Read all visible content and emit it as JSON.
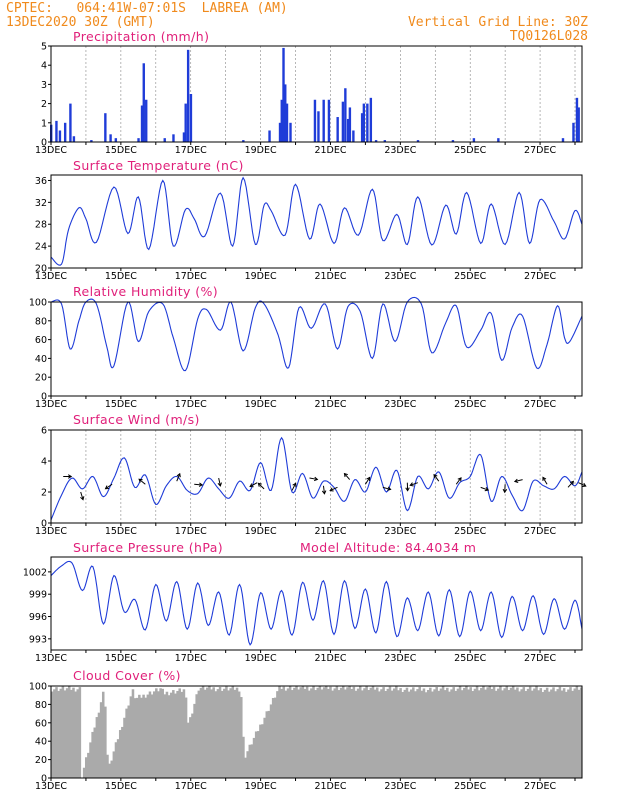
{
  "header": {
    "line1_left": "CPTEC:   064:41W-07:01S  LABREA (AM)",
    "line2_left": "13DEC2020 30Z (GMT)",
    "line1_right": "Vertical Grid Line: 30Z",
    "line2_right": "TQ0126L028",
    "colors": {
      "header": "#f08a1c",
      "title": "#e0207a",
      "series": "#1f3cd8",
      "cloud": "#aaaaaa"
    }
  },
  "x_axis_labels": [
    "13DEC",
    "15DEC",
    "17DEC",
    "19DEC",
    "21DEC",
    "23DEC",
    "25DEC",
    "27DEC"
  ],
  "chart_data": [
    {
      "type": "bar",
      "title": "Precipitation (mm/h)",
      "ylim": [
        0,
        5
      ],
      "yticks": [
        "0",
        "1",
        "2",
        "3",
        "4",
        "5"
      ],
      "bars": [
        [
          0.0,
          0.9
        ],
        [
          0.15,
          1.1
        ],
        [
          0.25,
          0.6
        ],
        [
          0.4,
          1.0
        ],
        [
          0.55,
          2.0
        ],
        [
          0.65,
          0.3
        ],
        [
          1.15,
          0.1
        ],
        [
          1.55,
          1.5
        ],
        [
          1.7,
          0.4
        ],
        [
          1.85,
          0.2
        ],
        [
          2.5,
          0.2
        ],
        [
          2.6,
          1.9
        ],
        [
          2.65,
          4.1
        ],
        [
          2.72,
          2.2
        ],
        [
          3.25,
          0.2
        ],
        [
          3.5,
          0.4
        ],
        [
          3.8,
          0.5
        ],
        [
          3.85,
          2.0
        ],
        [
          3.92,
          4.8
        ],
        [
          4.0,
          2.5
        ],
        [
          5.5,
          0.1
        ],
        [
          6.25,
          0.6
        ],
        [
          6.55,
          1.0
        ],
        [
          6.6,
          2.2
        ],
        [
          6.65,
          4.9
        ],
        [
          6.7,
          3.0
        ],
        [
          6.75,
          2.0
        ],
        [
          6.85,
          1.0
        ],
        [
          7.55,
          2.2
        ],
        [
          7.65,
          1.6
        ],
        [
          7.8,
          2.2
        ],
        [
          7.95,
          2.2
        ],
        [
          8.2,
          1.3
        ],
        [
          8.35,
          2.1
        ],
        [
          8.42,
          2.8
        ],
        [
          8.5,
          1.2
        ],
        [
          8.55,
          1.8
        ],
        [
          8.65,
          0.6
        ],
        [
          8.9,
          1.5
        ],
        [
          8.95,
          2.0
        ],
        [
          9.05,
          2.0
        ],
        [
          9.15,
          2.3
        ],
        [
          9.3,
          0.1
        ],
        [
          9.55,
          0.1
        ],
        [
          10.5,
          0.1
        ],
        [
          11.5,
          0.1
        ],
        [
          12.1,
          0.2
        ],
        [
          12.8,
          0.2
        ],
        [
          14.65,
          0.2
        ],
        [
          14.95,
          1.0
        ],
        [
          15.05,
          2.3
        ],
        [
          15.1,
          1.8
        ]
      ],
      "vertical_grid": true
    },
    {
      "type": "line",
      "title": "Surface Temperature (nC)",
      "ylim": [
        20,
        37
      ],
      "yticks": [
        "20",
        "24",
        "28",
        "32",
        "36"
      ],
      "x": [
        0,
        0.3,
        0.5,
        0.8,
        1.0,
        1.3,
        1.8,
        2.2,
        2.5,
        2.8,
        3.2,
        3.5,
        3.85,
        4.1,
        4.4,
        4.85,
        5.2,
        5.5,
        5.85,
        6.1,
        6.3,
        6.7,
        7.0,
        7.4,
        7.7,
        8.1,
        8.4,
        8.8,
        9.2,
        9.5,
        9.9,
        10.2,
        10.5,
        10.9,
        11.3,
        11.6,
        11.9,
        12.3,
        12.6,
        13.0,
        13.4,
        13.7,
        14.0,
        14.4,
        14.7,
        15.0,
        15.2
      ],
      "y": [
        22,
        20.7,
        27,
        31,
        29,
        24.7,
        34.8,
        26.3,
        33,
        23.4,
        36,
        24,
        30.7,
        29,
        25.8,
        33.7,
        24,
        36.5,
        24.3,
        31.5,
        30.5,
        26,
        35.3,
        25.3,
        31.7,
        24.5,
        31,
        26,
        34.4,
        25,
        29.8,
        24.3,
        33,
        24.2,
        31.5,
        26.2,
        33.8,
        24.5,
        31.7,
        24.3,
        33.8,
        24.5,
        32.5,
        28.5,
        25.3,
        30.5,
        28
      ]
    },
    {
      "type": "line",
      "title": "Relative Humidity (%)",
      "ylim": [
        0,
        100
      ],
      "yticks": [
        "0",
        "20",
        "40",
        "60",
        "80",
        "100"
      ],
      "x": [
        0,
        0.3,
        0.55,
        0.8,
        1.0,
        1.3,
        1.6,
        1.8,
        2.2,
        2.5,
        2.8,
        3.2,
        3.5,
        3.85,
        4.2,
        4.45,
        4.85,
        5.15,
        5.5,
        5.85,
        6.1,
        6.5,
        6.8,
        7.1,
        7.45,
        7.85,
        8.2,
        8.5,
        8.85,
        9.2,
        9.5,
        9.85,
        10.2,
        10.6,
        10.9,
        11.3,
        11.6,
        11.9,
        12.3,
        12.6,
        12.9,
        13.2,
        13.5,
        13.9,
        14.2,
        14.5,
        14.7,
        14.85,
        15.2
      ],
      "y": [
        100,
        98,
        50,
        80,
        100,
        98,
        52,
        32,
        100,
        58,
        90,
        98,
        62,
        27,
        82,
        92,
        70,
        100,
        48,
        94,
        98,
        65,
        30,
        94,
        72,
        98,
        50,
        95,
        90,
        40,
        98,
        58,
        100,
        98,
        46,
        78,
        96,
        52,
        70,
        88,
        38,
        73,
        85,
        30,
        55,
        96,
        62,
        58,
        85
      ]
    },
    {
      "type": "line",
      "title": "Surface Wind (m/s)",
      "ylim": [
        0,
        6
      ],
      "yticks": [
        "0",
        "2",
        "4",
        "6"
      ],
      "x": [
        0,
        0.3,
        0.6,
        0.9,
        1.2,
        1.5,
        1.8,
        2.1,
        2.4,
        2.7,
        3.0,
        3.3,
        3.6,
        3.9,
        4.2,
        4.5,
        4.8,
        5.1,
        5.4,
        5.7,
        6.0,
        6.3,
        6.6,
        6.9,
        7.2,
        7.5,
        7.8,
        8.1,
        8.4,
        8.7,
        9.0,
        9.3,
        9.6,
        9.9,
        10.2,
        10.5,
        10.8,
        11.1,
        11.4,
        11.7,
        12.0,
        12.3,
        12.6,
        12.9,
        13.2,
        13.5,
        13.8,
        14.1,
        14.4,
        14.7,
        15.0,
        15.2
      ],
      "y": [
        0.2,
        1.8,
        2.9,
        2.2,
        3.0,
        1.7,
        2.9,
        4.2,
        2.3,
        3.1,
        1.2,
        2.4,
        3.0,
        2.1,
        1.9,
        2.9,
        2.2,
        1.6,
        2.7,
        2.1,
        3.9,
        2.1,
        5.5,
        2.0,
        3.2,
        1.6,
        2.7,
        2.3,
        1.4,
        2.8,
        2.0,
        3.6,
        2.0,
        3.4,
        0.8,
        3.0,
        2.2,
        3.3,
        1.6,
        2.6,
        3.0,
        4.4,
        1.4,
        3.0,
        1.8,
        0.8,
        2.7,
        2.4,
        2.2,
        3.0,
        2.4,
        3.3
      ],
      "wind_arrows": [
        [
          0.35,
          3
        ],
        [
          0.85,
          2
        ],
        [
          1.75,
          2.5
        ],
        [
          2.7,
          2.5
        ],
        [
          3.6,
          2.7
        ],
        [
          4.1,
          2.5
        ],
        [
          4.8,
          2.9
        ],
        [
          5.9,
          2.6
        ],
        [
          6.1,
          2.2
        ],
        [
          6.9,
          2.1
        ],
        [
          7.4,
          2.9
        ],
        [
          7.8,
          2.4
        ],
        [
          8.2,
          2.3
        ],
        [
          8.55,
          2.8
        ],
        [
          9.0,
          2.5
        ],
        [
          9.5,
          2.3
        ],
        [
          10.2,
          2.6
        ],
        [
          10.5,
          2.6
        ],
        [
          11.1,
          2.7
        ],
        [
          11.6,
          2.5
        ],
        [
          12.3,
          2.3
        ],
        [
          13.0,
          2.5
        ],
        [
          13.5,
          2.8
        ],
        [
          14.2,
          2.5
        ],
        [
          14.8,
          2.3
        ],
        [
          15.1,
          2.6
        ]
      ],
      "vertical_grid": true
    },
    {
      "type": "line",
      "title": "Surface Pressure (hPa)",
      "annotation": "Model Altitude: 84.4034 m",
      "ylim": [
        991.5,
        1004
      ],
      "yticks": [
        "993",
        "996",
        "999",
        "1002"
      ],
      "x": [
        0,
        0.3,
        0.6,
        0.9,
        1.2,
        1.5,
        1.8,
        2.1,
        2.4,
        2.7,
        3.0,
        3.3,
        3.6,
        3.9,
        4.2,
        4.5,
        4.8,
        5.1,
        5.4,
        5.7,
        6.0,
        6.3,
        6.6,
        6.9,
        7.2,
        7.5,
        7.8,
        8.1,
        8.4,
        8.7,
        9.0,
        9.3,
        9.6,
        9.9,
        10.2,
        10.5,
        10.8,
        11.1,
        11.4,
        11.7,
        12.0,
        12.3,
        12.6,
        12.9,
        13.2,
        13.5,
        13.8,
        14.1,
        14.4,
        14.7,
        15.0,
        15.2
      ],
      "y": [
        1001.5,
        1002.8,
        1003.2,
        999.5,
        1002.7,
        995,
        1001.5,
        996.6,
        998.3,
        994.2,
        1000.3,
        995.4,
        1000.7,
        994.3,
        1000.5,
        994.8,
        999.3,
        993.5,
        1000.3,
        992.2,
        999.2,
        994.3,
        999.5,
        993.5,
        1000.6,
        995.5,
        1000.8,
        993.6,
        1000.8,
        994.4,
        999.7,
        993.8,
        1000.7,
        993.3,
        998.5,
        994.1,
        999.3,
        993.4,
        999.6,
        993.3,
        999.4,
        994.1,
        999.3,
        993.2,
        998.7,
        994.1,
        998.8,
        993.6,
        998.4,
        994.3,
        998.2,
        994.3
      ]
    },
    {
      "type": "area",
      "title": "Cloud Cover (%)",
      "ylim": [
        0,
        100
      ],
      "yticks": [
        "0",
        "20",
        "40",
        "60",
        "80",
        "100"
      ],
      "x": [
        0,
        0.8,
        0.85,
        1.5,
        1.6,
        2.3,
        2.4,
        3.1,
        3.2,
        3.8,
        3.9,
        4.2,
        4.9,
        5.4,
        5.5,
        6.5,
        7.5,
        8.5,
        9.5,
        10.5,
        11.5,
        12.5,
        13.5,
        14.5,
        15.2
      ],
      "y": [
        97,
        97,
        2,
        98,
        8,
        95,
        86,
        97,
        92,
        96,
        58,
        98,
        97,
        97,
        22,
        98,
        98,
        98,
        97,
        96,
        97,
        98,
        97,
        96,
        98
      ]
    }
  ]
}
